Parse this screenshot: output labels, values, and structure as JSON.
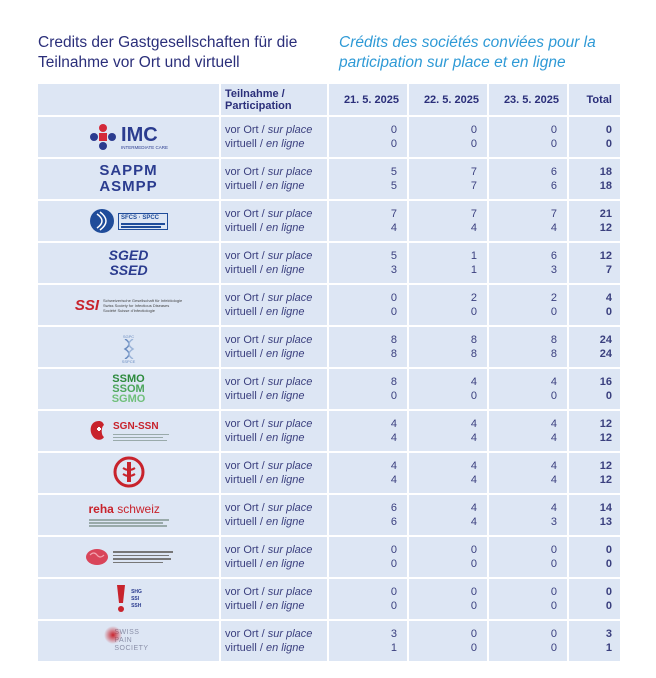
{
  "title_de_line1": "Credits der Gastgesellschaften für die",
  "title_de_line2": "Teilnahme vor Ort und virtuell",
  "title_fr_line1": "Crédits des sociétés conviées pour la",
  "title_fr_line2": "participation sur place et en ligne",
  "header": {
    "participation_de": "Teilnahme /",
    "participation_fr": "Participation",
    "d1": "21. 5. 2025",
    "d2": "22. 5. 2025",
    "d3": "23. 5. 2025",
    "total": "Total"
  },
  "mode_onsite_de": "vor Ort /",
  "mode_onsite_fr": "sur place",
  "mode_virtual_de": "virtuell /",
  "mode_virtual_fr": "en ligne",
  "logos": {
    "imc": "IMC",
    "imc_sub": "INTERMEDIATE CARE",
    "sappm1": "SAPPM",
    "sappm2": "ASMPP",
    "sfcs": "SFCS · SPCC",
    "sged1": "SGED",
    "sged2": "SSED",
    "ssi1": "Schweizerische Gesellschaft für Infektiologie",
    "ssi2": "Swiss Society for Infectious Diseases",
    "ssi3": "Société Suisse d'Infectiologie",
    "sgpc1": "SGPC",
    "sgpc2": "SSPCE",
    "ssmo1": "SSMO",
    "ssmo2": "SSOM",
    "ssmo3": "SGMO",
    "sgnssn": "SGN-SSN",
    "reha1": "reha",
    "reha2": "schweiz",
    "shg": "SHG",
    "shg2": "SSI",
    "shg3": "SSH",
    "pain1": "SWISS",
    "pain2": "PAIN",
    "pain3": "SOCIETY"
  },
  "rows": [
    {
      "onsite": [
        "0",
        "0",
        "0",
        "0"
      ],
      "virtual": [
        "0",
        "0",
        "0",
        "0"
      ]
    },
    {
      "onsite": [
        "5",
        "7",
        "6",
        "18"
      ],
      "virtual": [
        "5",
        "7",
        "6",
        "18"
      ]
    },
    {
      "onsite": [
        "7",
        "7",
        "7",
        "21"
      ],
      "virtual": [
        "4",
        "4",
        "4",
        "12"
      ]
    },
    {
      "onsite": [
        "5",
        "1",
        "6",
        "12"
      ],
      "virtual": [
        "3",
        "1",
        "3",
        "7"
      ]
    },
    {
      "onsite": [
        "0",
        "2",
        "2",
        "4"
      ],
      "virtual": [
        "0",
        "0",
        "0",
        "0"
      ]
    },
    {
      "onsite": [
        "8",
        "8",
        "8",
        "24"
      ],
      "virtual": [
        "8",
        "8",
        "8",
        "24"
      ]
    },
    {
      "onsite": [
        "8",
        "4",
        "4",
        "16"
      ],
      "virtual": [
        "0",
        "0",
        "0",
        "0"
      ]
    },
    {
      "onsite": [
        "4",
        "4",
        "4",
        "12"
      ],
      "virtual": [
        "4",
        "4",
        "4",
        "12"
      ]
    },
    {
      "onsite": [
        "4",
        "4",
        "4",
        "12"
      ],
      "virtual": [
        "4",
        "4",
        "4",
        "12"
      ]
    },
    {
      "onsite": [
        "6",
        "4",
        "4",
        "14"
      ],
      "virtual": [
        "6",
        "4",
        "3",
        "13"
      ]
    },
    {
      "onsite": [
        "0",
        "0",
        "0",
        "0"
      ],
      "virtual": [
        "0",
        "0",
        "0",
        "0"
      ]
    },
    {
      "onsite": [
        "0",
        "0",
        "0",
        "0"
      ],
      "virtual": [
        "0",
        "0",
        "0",
        "0"
      ]
    },
    {
      "onsite": [
        "3",
        "0",
        "0",
        "3"
      ],
      "virtual": [
        "1",
        "0",
        "0",
        "1"
      ]
    }
  ]
}
